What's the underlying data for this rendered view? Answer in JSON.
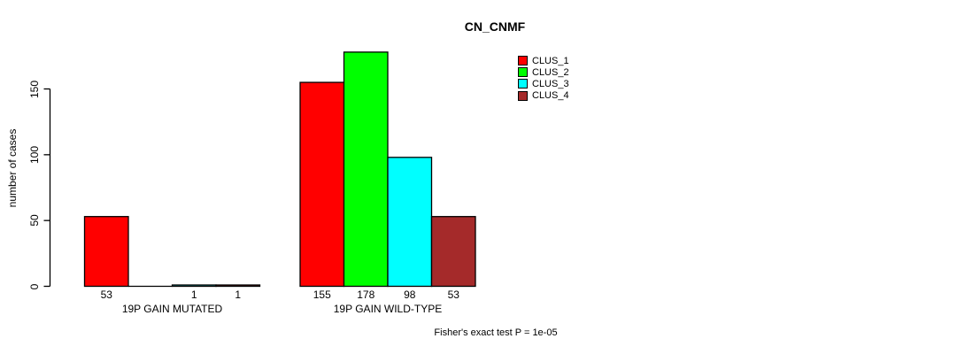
{
  "chart_data": {
    "type": "bar",
    "title": "CN_CNMF",
    "ylabel": "number of cases",
    "xlabel": "",
    "yticks": [
      0,
      50,
      100,
      150
    ],
    "ylim": [
      0,
      178
    ],
    "grid": false,
    "categories": [
      "19P GAIN MUTATED",
      "19P GAIN WILD-TYPE"
    ],
    "series": [
      {
        "name": "CLUS_1",
        "color": "#FF0000",
        "values": [
          53,
          155
        ],
        "labels": [
          "53",
          "155"
        ]
      },
      {
        "name": "CLUS_2",
        "color": "#00FF00",
        "values": [
          0,
          178
        ],
        "labels": [
          "",
          "178"
        ]
      },
      {
        "name": "CLUS_3",
        "color": "#00FFFF",
        "values": [
          1,
          98
        ],
        "labels": [
          "1",
          "98"
        ]
      },
      {
        "name": "CLUS_4",
        "color": "#A52A2A",
        "values": [
          1,
          53
        ],
        "labels": [
          "1",
          "53"
        ]
      }
    ],
    "legend": {
      "position": "top-right",
      "entries": [
        "CLUS_1",
        "CLUS_2",
        "CLUS_3",
        "CLUS_4"
      ]
    },
    "footnote": "Fisher's exact test P = 1e-05",
    "axis_color": "#000000",
    "bar_border_color": "#000000"
  }
}
